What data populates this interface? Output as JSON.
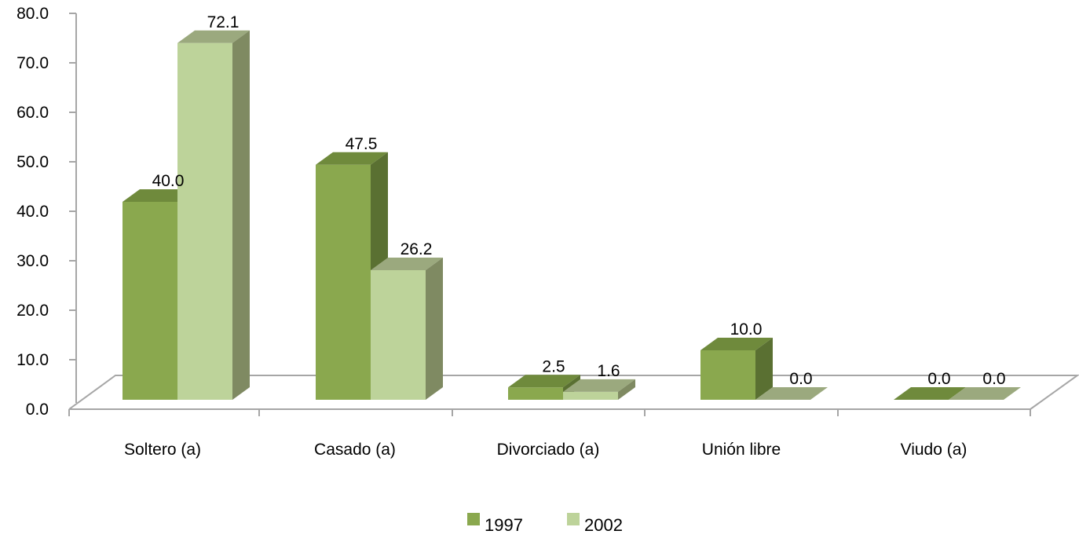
{
  "chart_data": {
    "type": "bar",
    "categories": [
      "Soltero (a)",
      "Casado (a)",
      "Divorciado (a)",
      "Unión libre",
      "Viudo (a)"
    ],
    "series": [
      {
        "name": "1997",
        "values": [
          40.0,
          47.5,
          2.5,
          10.0,
          0.0
        ],
        "labels": [
          "40.0",
          "47.5",
          "2.5",
          "10.0",
          "0.0"
        ]
      },
      {
        "name": "2002",
        "values": [
          72.1,
          26.2,
          1.6,
          0.0,
          0.0
        ],
        "labels": [
          "72.1",
          "26.2",
          "1.6",
          "0.0",
          "0.0"
        ]
      }
    ],
    "yticks": [
      "0.0",
      "10.0",
      "20.0",
      "30.0",
      "40.0",
      "50.0",
      "60.0",
      "70.0",
      "80.0"
    ],
    "ylim": [
      0,
      80
    ],
    "legend_position": "bottom",
    "three_d": true,
    "grid": false,
    "colors": {
      "s1997": {
        "front": "#8aa84e",
        "top": "#6f8a3c",
        "side": "#5a7032"
      },
      "s2002": {
        "front": "#bdd39a",
        "top": "#9ba97e",
        "side": "#7f8a62"
      },
      "axis": "#a6a6a6"
    }
  }
}
